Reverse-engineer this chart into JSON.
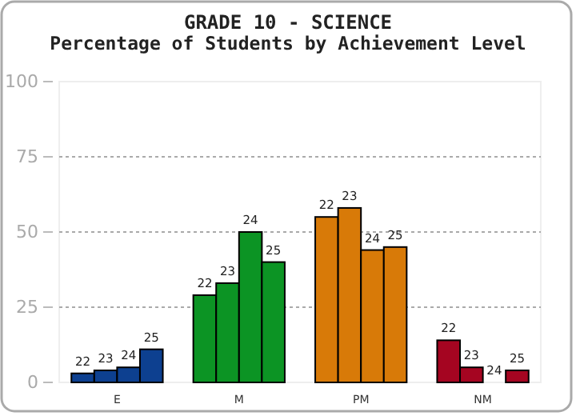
{
  "chart_data": {
    "type": "bar",
    "title": "GRADE 10 - SCIENCE",
    "subtitle": "Percentage of Students by Achievement Level",
    "categories": [
      "E",
      "M",
      "PM",
      "NM"
    ],
    "series": [
      {
        "name": "22",
        "colors": [
          "#0d4090",
          "#0c9424",
          "#d87a08",
          "#a50521"
        ],
        "values": [
          3,
          29,
          55,
          14
        ]
      },
      {
        "name": "23",
        "colors": [
          "#0d4090",
          "#0c9424",
          "#d87a08",
          "#a50521"
        ],
        "values": [
          4,
          33,
          58,
          5
        ]
      },
      {
        "name": "24",
        "colors": [
          "#0d4090",
          "#0c9424",
          "#d87a08",
          "#a50521"
        ],
        "values": [
          5,
          50,
          44,
          0
        ]
      },
      {
        "name": "25",
        "colors": [
          "#0d4090",
          "#0c9424",
          "#d87a08",
          "#a50521"
        ],
        "values": [
          11,
          40,
          45,
          4
        ]
      }
    ],
    "ylim": [
      0,
      100
    ],
    "yticks": [
      0,
      25,
      50,
      75,
      100
    ],
    "grid": "y"
  }
}
